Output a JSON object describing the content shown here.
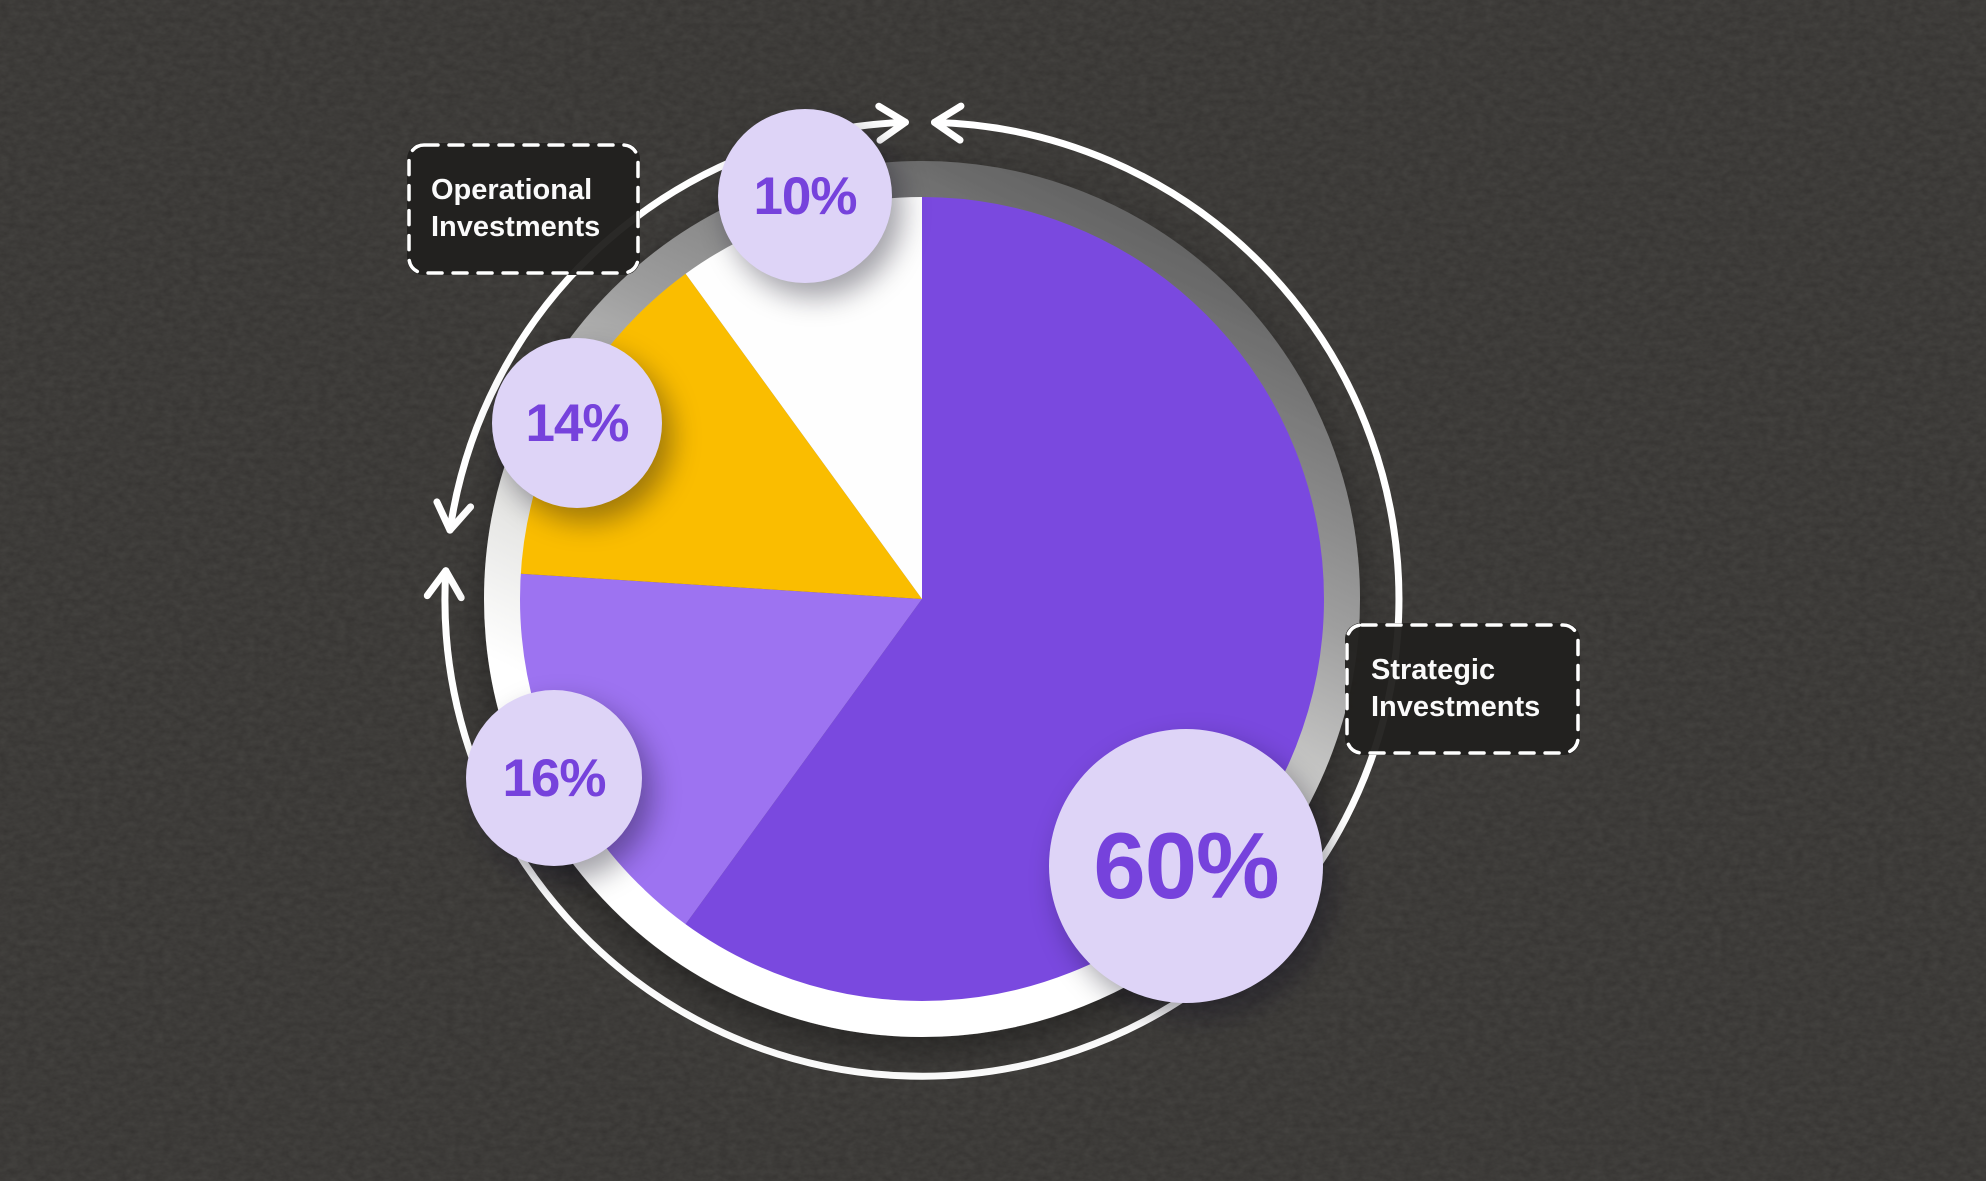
{
  "canvas": {
    "background_color": "#353331",
    "texture": "dark-grain"
  },
  "chart_data": {
    "type": "pie",
    "unit": "%",
    "direction": "clockwise",
    "start_angle_deg": 0,
    "slices": [
      {
        "label": "Strategic Investments",
        "value": 60,
        "badge": "60%",
        "color": "#7A4ADF"
      },
      {
        "label": "",
        "value": 16,
        "badge": "16%",
        "color": "#9D73F1"
      },
      {
        "label": "Operational Investments",
        "value": 14,
        "badge": "14%",
        "color": "#FABD06"
      },
      {
        "label": "",
        "value": 10,
        "badge": "10%",
        "color": "#FEFEFE"
      }
    ],
    "annotations": [
      {
        "text": "Operational Investments",
        "position": "top-left",
        "style": "dashed-box"
      },
      {
        "text": "Strategic Investments",
        "position": "right",
        "style": "dashed-box"
      }
    ],
    "legend_position": "callouts",
    "grid": false
  },
  "badges": {
    "background": "#DED4F7",
    "text_color": "#7642DC"
  },
  "callouts": {
    "operational": "Operational Investments",
    "strategic": "Strategic Investments",
    "border_color": "#FFFFFF",
    "text_color": "#FAFAFA"
  },
  "ring": {
    "gradient_from": "#696969",
    "gradient_to": "#FFFFFF"
  },
  "outer_circle": {
    "color": "#FFFFFF",
    "arrow_style": "chevron"
  }
}
